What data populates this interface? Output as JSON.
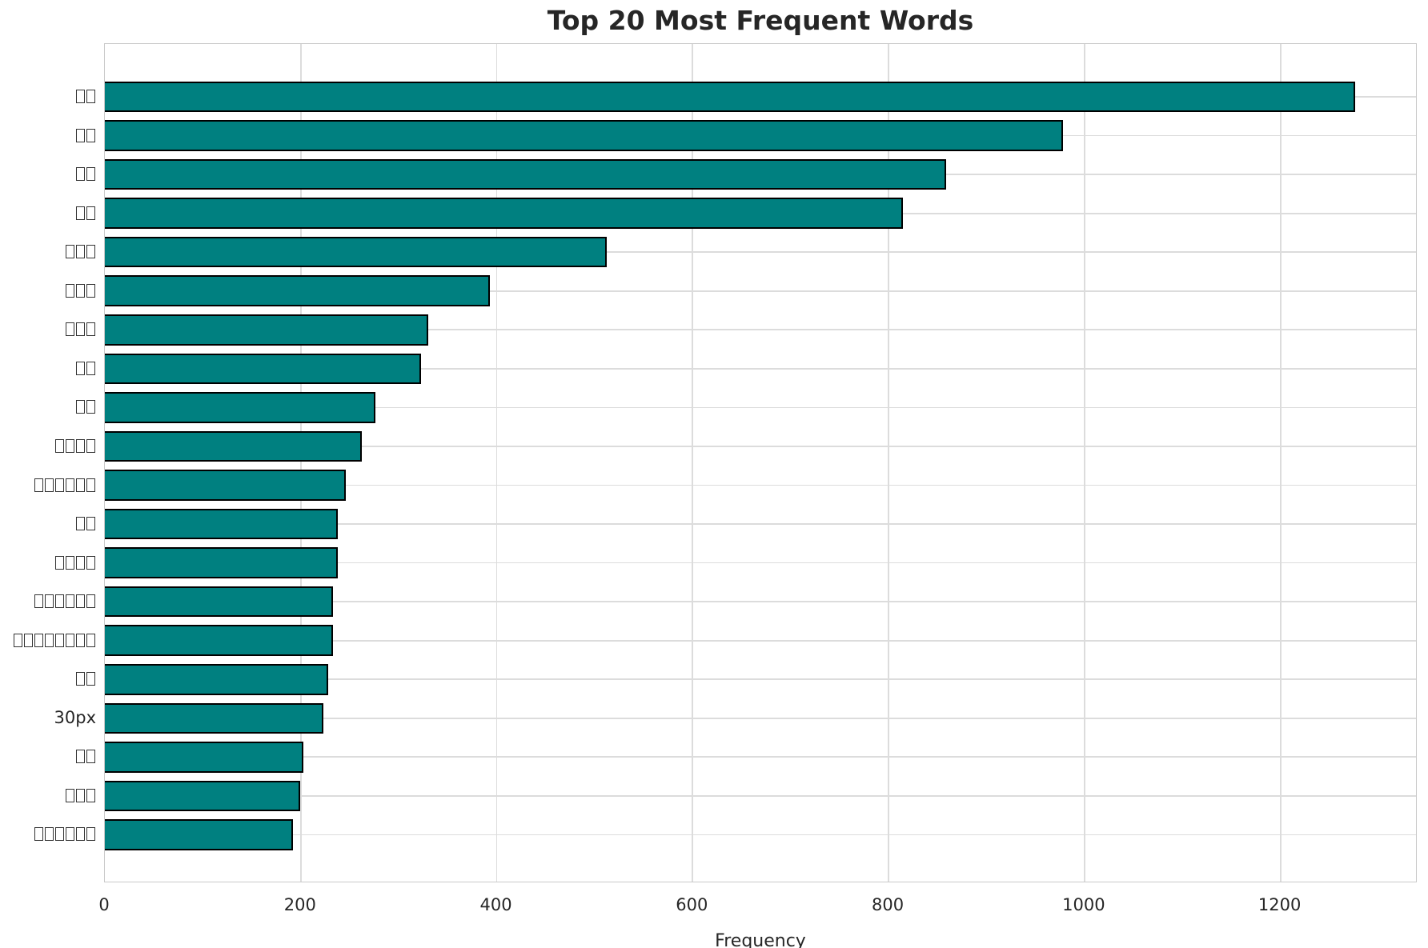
{
  "chart_data": {
    "type": "bar",
    "orientation": "horizontal",
    "title": "Top 20 Most Frequent Words",
    "xlabel": "Frequency",
    "ylabel": "",
    "xlim": [
      0,
      1340
    ],
    "xticks": [
      0,
      200,
      400,
      600,
      800,
      1000,
      1200
    ],
    "grid": true,
    "legend": "none",
    "bar_color": "#008080",
    "bar_edge_color": "#000000",
    "categories": [
      "□□",
      "□□",
      "□□",
      "□□",
      "□□□",
      "□□□",
      "□□□",
      "□□",
      "□□",
      "□□□□",
      "□□□□□□",
      "□□",
      "□□□□",
      "□□□□□□",
      "□□□□□□□□",
      "□□",
      "30px",
      "□□",
      "□□□",
      "□□□□□□"
    ],
    "values": [
      1276,
      978,
      859,
      815,
      512,
      393,
      330,
      323,
      276,
      262,
      246,
      238,
      238,
      233,
      233,
      228,
      223,
      203,
      199,
      192
    ],
    "bars": [
      {
        "label": "□□",
        "value": 1276
      },
      {
        "label": "□□",
        "value": 978
      },
      {
        "label": "□□",
        "value": 859
      },
      {
        "label": "□□",
        "value": 815
      },
      {
        "label": "□□□",
        "value": 512
      },
      {
        "label": "□□□",
        "value": 393
      },
      {
        "label": "□□□",
        "value": 330
      },
      {
        "label": "□□",
        "value": 323
      },
      {
        "label": "□□",
        "value": 276
      },
      {
        "label": "□□□□",
        "value": 262
      },
      {
        "label": "□□□□□□",
        "value": 246
      },
      {
        "label": "□□",
        "value": 238
      },
      {
        "label": "□□□□",
        "value": 238
      },
      {
        "label": "□□□□□□",
        "value": 233
      },
      {
        "label": "□□□□□□□□",
        "value": 233
      },
      {
        "label": "□□",
        "value": 228
      },
      {
        "label": "30px",
        "value": 223
      },
      {
        "label": "□□",
        "value": 203
      },
      {
        "label": "□□□",
        "value": 199
      },
      {
        "label": "□□□□□□",
        "value": 192
      }
    ]
  }
}
